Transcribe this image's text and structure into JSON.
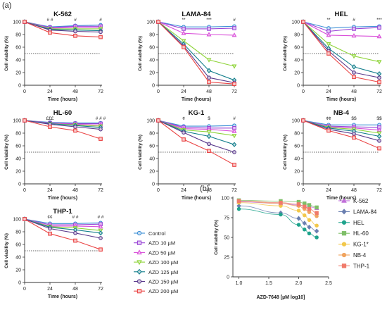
{
  "panel_labels": [
    "(a)",
    "(b)"
  ],
  "legend_a": [
    {
      "name": "Control",
      "color": "#3d8fd6",
      "marker": "circle"
    },
    {
      "name": "AZD 10 µM",
      "color": "#9a45d6",
      "marker": "square"
    },
    {
      "name": "AZD 50 µM",
      "color": "#d94fd9",
      "marker": "triangle-up"
    },
    {
      "name": "AZD 100 µM",
      "color": "#8fd43a",
      "marker": "triangle-down"
    },
    {
      "name": "AZD 125 µM",
      "color": "#137e8c",
      "marker": "diamond"
    },
    {
      "name": "AZD 150 µM",
      "color": "#5a3a8c",
      "marker": "circle"
    },
    {
      "name": "AZD 200 µM",
      "color": "#ea4545",
      "marker": "square"
    }
  ],
  "legend_b": [
    {
      "name": "K-562",
      "color": "#c06ed9",
      "marker": "triangle-up"
    },
    {
      "name": "LAMA-84",
      "color": "#6a7fb0",
      "marker": "diamond"
    },
    {
      "name": "HEL",
      "color": "#1ea38c",
      "marker": "circle"
    },
    {
      "name": "HL-60",
      "color": "#7fbf68",
      "marker": "square"
    },
    {
      "name": "KG-1*",
      "color": "#f2c84b",
      "marker": "circle"
    },
    {
      "name": "NB-4",
      "color": "#f0a35e",
      "marker": "circle"
    },
    {
      "name": "THP-1",
      "color": "#f07a6a",
      "marker": "square"
    }
  ],
  "chart_data": [
    {
      "type": "line",
      "title": "K-562",
      "xlabel": "Time (hours)",
      "ylabel": "Cell viability (%)",
      "x": [
        0,
        24,
        48,
        72
      ],
      "xlim": [
        0,
        72
      ],
      "ylim": [
        0,
        100
      ],
      "xticks": [
        "0",
        "24",
        "48",
        "72"
      ],
      "yticks": [
        "0",
        "20",
        "40",
        "60",
        "80",
        "100"
      ],
      "reference_line": 50,
      "annotations": [
        {
          "x": 24,
          "text": "# #"
        },
        {
          "x": 48,
          "text": "#"
        },
        {
          "x": 72,
          "text": "#"
        }
      ],
      "series": [
        {
          "name": "Control",
          "values": [
            100,
            92,
            94,
            95
          ]
        },
        {
          "name": "AZD 10 µM",
          "values": [
            100,
            91,
            93,
            93
          ]
        },
        {
          "name": "AZD 50 µM",
          "values": [
            100,
            90,
            91,
            91
          ]
        },
        {
          "name": "AZD 100 µM",
          "values": [
            100,
            89,
            89,
            89
          ]
        },
        {
          "name": "AZD 125 µM",
          "values": [
            100,
            88,
            87,
            86
          ]
        },
        {
          "name": "AZD 150 µM",
          "values": [
            100,
            87,
            85,
            84
          ]
        },
        {
          "name": "AZD 200 µM",
          "values": [
            100,
            83,
            78,
            76
          ]
        }
      ]
    },
    {
      "type": "line",
      "title": "LAMA-84",
      "xlabel": "Time (hours)",
      "ylabel": "Cell viability (%)",
      "x": [
        0,
        24,
        48,
        72
      ],
      "xlim": [
        0,
        72
      ],
      "ylim": [
        0,
        100
      ],
      "xticks": [
        "0",
        "24",
        "48",
        "72"
      ],
      "yticks": [
        "0",
        "20",
        "40",
        "60",
        "80",
        "100"
      ],
      "reference_line": 50,
      "annotations": [
        {
          "x": 24,
          "text": "**"
        },
        {
          "x": 48,
          "text": "***"
        },
        {
          "x": 72,
          "text": "#"
        }
      ],
      "series": [
        {
          "name": "Control",
          "values": [
            100,
            92,
            92,
            93
          ]
        },
        {
          "name": "AZD 10 µM",
          "values": [
            100,
            89,
            89,
            90
          ]
        },
        {
          "name": "AZD 50 µM",
          "values": [
            100,
            82,
            80,
            79
          ]
        },
        {
          "name": "AZD 100 µM",
          "values": [
            100,
            70,
            40,
            30
          ]
        },
        {
          "name": "AZD 125 µM",
          "values": [
            100,
            65,
            23,
            8
          ]
        },
        {
          "name": "AZD 150 µM",
          "values": [
            100,
            62,
            12,
            4
          ]
        },
        {
          "name": "AZD 200 µM",
          "values": [
            100,
            60,
            5,
            2
          ]
        }
      ]
    },
    {
      "type": "line",
      "title": "HEL",
      "xlabel": "Time (hours)",
      "ylabel": "Cell viability (%)",
      "x": [
        0,
        24,
        48,
        72
      ],
      "xlim": [
        0,
        72
      ],
      "ylim": [
        0,
        100
      ],
      "xticks": [
        "0",
        "24",
        "48",
        "72"
      ],
      "yticks": [
        "0",
        "20",
        "40",
        "60",
        "80",
        "100"
      ],
      "reference_line": 50,
      "annotations": [
        {
          "x": 24,
          "text": "**"
        },
        {
          "x": 48,
          "text": "#"
        },
        {
          "x": 72,
          "text": "***"
        }
      ],
      "series": [
        {
          "name": "Control",
          "values": [
            100,
            90,
            92,
            93
          ]
        },
        {
          "name": "AZD 10 µM",
          "values": [
            100,
            85,
            89,
            91
          ]
        },
        {
          "name": "AZD 50 µM",
          "values": [
            100,
            79,
            78,
            77
          ]
        },
        {
          "name": "AZD 100 µM",
          "values": [
            100,
            65,
            46,
            37
          ]
        },
        {
          "name": "AZD 125 µM",
          "values": [
            100,
            58,
            29,
            18
          ]
        },
        {
          "name": "AZD 150 µM",
          "values": [
            100,
            54,
            20,
            12
          ]
        },
        {
          "name": "AZD 200 µM",
          "values": [
            100,
            50,
            13,
            5
          ]
        }
      ]
    },
    {
      "type": "line",
      "title": "HL-60",
      "xlabel": "Time (hours)",
      "ylabel": "Cell viability (%)",
      "x": [
        0,
        24,
        48,
        72
      ],
      "xlim": [
        0,
        72
      ],
      "ylim": [
        0,
        100
      ],
      "xticks": [
        "0",
        "24",
        "48",
        "72"
      ],
      "yticks": [
        "0",
        "20",
        "40",
        "60",
        "80",
        "100"
      ],
      "reference_line": 50,
      "annotations": [
        {
          "x": 24,
          "text": "£££"
        },
        {
          "x": 72,
          "text": "# # #"
        }
      ],
      "series": [
        {
          "name": "Control",
          "values": [
            100,
            97,
            96,
            96
          ]
        },
        {
          "name": "AZD 10 µM",
          "values": [
            100,
            96,
            95,
            95
          ]
        },
        {
          "name": "AZD 50 µM",
          "values": [
            100,
            96,
            94,
            93
          ]
        },
        {
          "name": "AZD 100 µM",
          "values": [
            100,
            95,
            93,
            91
          ]
        },
        {
          "name": "AZD 125 µM",
          "values": [
            100,
            95,
            92,
            89
          ]
        },
        {
          "name": "AZD 150 µM",
          "values": [
            100,
            94,
            90,
            86
          ]
        },
        {
          "name": "AZD 200 µM",
          "values": [
            100,
            90,
            84,
            71
          ]
        }
      ]
    },
    {
      "type": "line",
      "title": "KG-1",
      "xlabel": "Time (hours)",
      "ylabel": "Cell viability (%)",
      "x": [
        0,
        24,
        48,
        72
      ],
      "xlim": [
        0,
        72
      ],
      "ylim": [
        0,
        100
      ],
      "xticks": [
        "0",
        "24",
        "48",
        "72"
      ],
      "yticks": [
        "0",
        "20",
        "40",
        "60",
        "80",
        "100"
      ],
      "reference_line": 50,
      "annotations": [
        {
          "x": 24,
          "text": "¢"
        },
        {
          "x": 48,
          "text": "$"
        },
        {
          "x": 72,
          "text": "#"
        }
      ],
      "series": [
        {
          "name": "Control",
          "values": [
            100,
            91,
            91,
            92
          ]
        },
        {
          "name": "AZD 10 µM",
          "values": [
            100,
            89,
            88,
            88
          ]
        },
        {
          "name": "AZD 50 µM",
          "values": [
            100,
            87,
            86,
            83
          ]
        },
        {
          "name": "AZD 100 µM",
          "values": [
            100,
            85,
            82,
            76
          ]
        },
        {
          "name": "AZD 125 µM",
          "values": [
            100,
            83,
            75,
            62
          ]
        },
        {
          "name": "AZD 150 µM",
          "values": [
            100,
            81,
            63,
            50
          ]
        },
        {
          "name": "AZD 200 µM",
          "values": [
            100,
            70,
            52,
            30
          ]
        }
      ]
    },
    {
      "type": "line",
      "title": "NB-4",
      "xlabel": "Time (hours)",
      "ylabel": "Cell viability (%)",
      "x": [
        0,
        24,
        48,
        72
      ],
      "xlim": [
        0,
        72
      ],
      "ylim": [
        0,
        100
      ],
      "xticks": [
        "0",
        "24",
        "48",
        "72"
      ],
      "yticks": [
        "0",
        "20",
        "40",
        "60",
        "80",
        "100"
      ],
      "reference_line": 50,
      "annotations": [
        {
          "x": 24,
          "text": "¢¢"
        },
        {
          "x": 48,
          "text": "$$"
        },
        {
          "x": 72,
          "text": "$$"
        }
      ],
      "series": [
        {
          "name": "Control",
          "values": [
            100,
            93,
            93,
            93
          ]
        },
        {
          "name": "AZD 10 µM",
          "values": [
            100,
            91,
            90,
            89
          ]
        },
        {
          "name": "AZD 50 µM",
          "values": [
            100,
            90,
            88,
            85
          ]
        },
        {
          "name": "AZD 100 µM",
          "values": [
            100,
            89,
            86,
            80
          ]
        },
        {
          "name": "AZD 125 µM",
          "values": [
            100,
            88,
            83,
            75
          ]
        },
        {
          "name": "AZD 150 µM",
          "values": [
            100,
            86,
            79,
            68
          ]
        },
        {
          "name": "AZD 200 µM",
          "values": [
            100,
            84,
            73,
            56
          ]
        }
      ]
    },
    {
      "type": "line",
      "title": "THP-1",
      "xlabel": "Time (hours)",
      "ylabel": "Cell viability (%)",
      "x": [
        0,
        24,
        48,
        72
      ],
      "xlim": [
        0,
        72
      ],
      "ylim": [
        0,
        100
      ],
      "xticks": [
        "0",
        "24",
        "48",
        "72"
      ],
      "yticks": [
        "0",
        "20",
        "40",
        "60",
        "80",
        "100"
      ],
      "reference_line": 50,
      "annotations": [
        {
          "x": 24,
          "text": "¢¢"
        },
        {
          "x": 48,
          "text": "# #"
        },
        {
          "x": 72,
          "text": "# #"
        }
      ],
      "series": [
        {
          "name": "Control",
          "values": [
            100,
            93,
            93,
            94
          ]
        },
        {
          "name": "AZD 10 µM",
          "values": [
            100,
            91,
            91,
            92
          ]
        },
        {
          "name": "AZD 50 µM",
          "values": [
            100,
            89,
            89,
            88
          ]
        },
        {
          "name": "AZD 100 µM",
          "values": [
            100,
            88,
            86,
            82
          ]
        },
        {
          "name": "AZD 125 µM",
          "values": [
            100,
            87,
            83,
            78
          ]
        },
        {
          "name": "AZD 150 µM",
          "values": [
            100,
            85,
            78,
            70
          ]
        },
        {
          "name": "AZD 200 µM",
          "values": [
            100,
            77,
            66,
            52
          ]
        }
      ]
    },
    {
      "type": "scatter",
      "title": "",
      "xlabel": "AZD-7648 [µM log10]",
      "ylabel": "Cell viability (%)",
      "xlim": [
        0.9,
        2.5
      ],
      "ylim": [
        0,
        100
      ],
      "xticks": [
        "1.0",
        "1.5",
        "2.0",
        "2.5"
      ],
      "yticks": [
        "0",
        "25",
        "50",
        "75",
        "100"
      ],
      "x": [
        1.0,
        1.699,
        2.0,
        2.097,
        2.176,
        2.301
      ],
      "series": [
        {
          "name": "K-562",
          "values": [
            95,
            93,
            91,
            90,
            89,
            87
          ]
        },
        {
          "name": "LAMA-84",
          "values": [
            90,
            81,
            74,
            68,
            63,
            58
          ]
        },
        {
          "name": "HEL",
          "values": [
            86,
            79,
            66,
            60,
            55,
            50
          ]
        },
        {
          "name": "HL-60",
          "values": [
            97,
            96,
            95,
            93,
            91,
            88
          ]
        },
        {
          "name": "KG-1*",
          "values": [
            94,
            90,
            84,
            78,
            72,
            65
          ]
        },
        {
          "name": "NB-4",
          "values": [
            96,
            93,
            90,
            86,
            82,
            77
          ]
        },
        {
          "name": "THP-1",
          "values": [
            96,
            94,
            92,
            89,
            86,
            81
          ]
        }
      ]
    }
  ]
}
